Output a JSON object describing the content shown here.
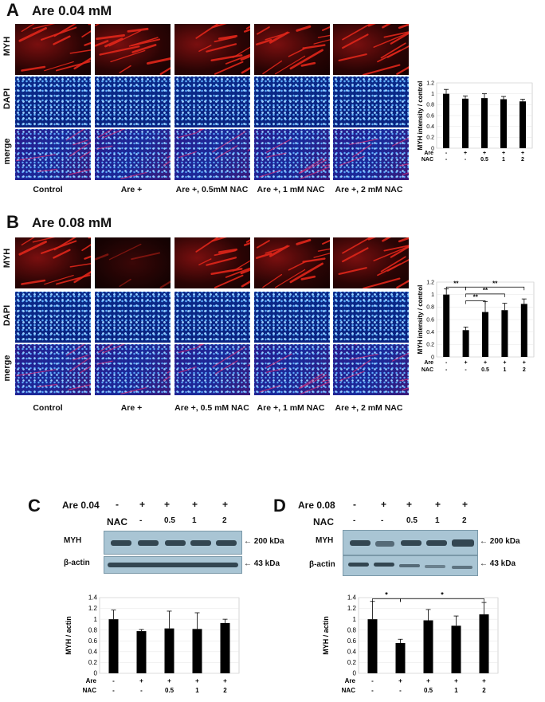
{
  "panels": {
    "A": {
      "letter": "A",
      "title": "Are 0.04 mM"
    },
    "B": {
      "letter": "B",
      "title": "Are 0.08 mM"
    },
    "C": {
      "letter": "C"
    },
    "D": {
      "letter": "D"
    }
  },
  "row_labels": [
    "MYH",
    "DAPI",
    "merge"
  ],
  "col_labels_A": [
    "Control",
    "Are +",
    "Are +, 0.5mM NAC",
    "Are +, 1 mM NAC",
    "Are +, 2 mM NAC"
  ],
  "col_labels_B": [
    "Control",
    "Are +",
    "Are +, 0.5 mM NAC",
    "Are +, 1 mM NAC",
    "Are +, 2 mM NAC"
  ],
  "wb_C": {
    "are_label": "Are 0.04",
    "nac_label": "NAC",
    "are_signs": [
      "-",
      "+",
      "+",
      "+",
      "+"
    ],
    "nac_signs": [
      "-",
      "-",
      "0.5",
      "1",
      "2"
    ],
    "myh_label": "MYH",
    "actin_label": "β-actin",
    "myh_kda": "← 200 kDa",
    "actin_kda": "← 43 kDa"
  },
  "wb_D": {
    "are_label": "Are 0.08",
    "nac_label": "NAC",
    "are_signs": [
      "-",
      "+",
      "+",
      "+",
      "+"
    ],
    "nac_signs": [
      "-",
      "-",
      "0.5",
      "1",
      "2"
    ],
    "myh_label": "MYH",
    "actin_label": "β-actin",
    "myh_kda": "← 200 kDa",
    "actin_kda": "← 43 kDa"
  },
  "colors": {
    "bar": "#000000",
    "blot_bg": "#a9c5d4",
    "band": "#1f2f3a"
  },
  "chart_data": [
    {
      "id": "A",
      "type": "bar",
      "ylabel": "MYH intensity / control",
      "ylim": [
        0,
        1.2
      ],
      "yticks": [
        "0",
        "0.2",
        "0.4",
        "0.6",
        "0.8",
        "1",
        "1.2"
      ],
      "values": [
        1.0,
        0.91,
        0.92,
        0.9,
        0.86
      ],
      "errors": [
        0.08,
        0.05,
        0.08,
        0.05,
        0.04
      ],
      "row1_label": "Are",
      "row1": [
        "-",
        "+",
        "+",
        "+",
        "+"
      ],
      "row2_label": "NAC",
      "row2": [
        "-",
        "-",
        "0.5",
        "1",
        "2"
      ],
      "sig": []
    },
    {
      "id": "B",
      "type": "bar",
      "ylabel": "MYH intensity / control",
      "ylim": [
        0,
        1.2
      ],
      "yticks": [
        "0",
        "0.2",
        "0.4",
        "0.6",
        "0.8",
        "1",
        "1.2"
      ],
      "values": [
        1.0,
        0.43,
        0.72,
        0.75,
        0.85
      ],
      "errors": [
        0.09,
        0.05,
        0.17,
        0.11,
        0.08
      ],
      "row1_label": "Are",
      "row1": [
        "-",
        "+",
        "+",
        "+",
        "+"
      ],
      "row2_label": "NAC",
      "row2": [
        "-",
        "-",
        "0.5",
        "1",
        "2"
      ],
      "sig": [
        {
          "from": 0,
          "to": 1,
          "y": 1.12,
          "label": "**"
        },
        {
          "from": 1,
          "to": 4,
          "y": 1.12,
          "label": "**"
        },
        {
          "from": 1,
          "to": 3,
          "y": 1.01,
          "label": "**"
        },
        {
          "from": 1,
          "to": 2,
          "y": 0.9,
          "label": "**"
        }
      ]
    },
    {
      "id": "C",
      "type": "bar",
      "ylabel": "MYH  / actin",
      "ylim": [
        0,
        1.4
      ],
      "yticks": [
        "0",
        "0.2",
        "0.4",
        "0.6",
        "0.8",
        "1",
        "1.2",
        "1.4"
      ],
      "values": [
        1.0,
        0.78,
        0.83,
        0.82,
        0.93
      ],
      "errors": [
        0.17,
        0.03,
        0.32,
        0.3,
        0.07
      ],
      "row1_label": "Are",
      "row1": [
        "-",
        "+",
        "+",
        "+",
        "+"
      ],
      "row2_label": "NAC",
      "row2": [
        "-",
        "-",
        "0.5",
        "1",
        "2"
      ],
      "sig": []
    },
    {
      "id": "D",
      "type": "bar",
      "ylabel": "MYH  / actin",
      "ylim": [
        0,
        1.4
      ],
      "yticks": [
        "0",
        "0.2",
        "0.4",
        "0.6",
        "0.8",
        "1",
        "1.2",
        "1.4"
      ],
      "values": [
        1.0,
        0.56,
        0.98,
        0.88,
        1.09
      ],
      "errors": [
        0.33,
        0.07,
        0.2,
        0.18,
        0.22
      ],
      "row1_label": "Are",
      "row1": [
        "-",
        "+",
        "+",
        "+",
        "+"
      ],
      "row2_label": "NAC",
      "row2": [
        "-",
        "-",
        "0.5",
        "1",
        "2"
      ],
      "sig": [
        {
          "from": 0,
          "to": 1,
          "y": 1.38,
          "label": "*"
        },
        {
          "from": 1,
          "to": 4,
          "y": 1.38,
          "label": "*"
        }
      ]
    }
  ]
}
